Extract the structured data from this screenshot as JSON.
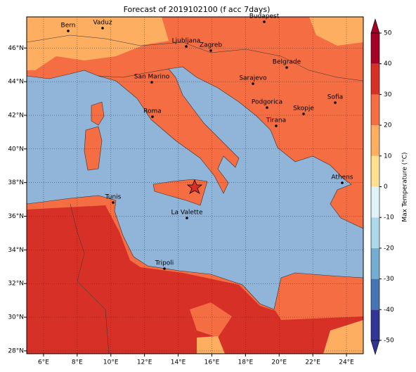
{
  "title": "Forecast of 2019102100 (f acc 7days)",
  "map": {
    "lon_range": [
      5,
      25
    ],
    "lat_range": [
      27.83,
      47.85
    ],
    "lon_ticks": [
      {
        "value": 6,
        "label": "6°E"
      },
      {
        "value": 8,
        "label": "8°E"
      },
      {
        "value": 10,
        "label": "10°E"
      },
      {
        "value": 12,
        "label": "12°E"
      },
      {
        "value": 14,
        "label": "14°E"
      },
      {
        "value": 16,
        "label": "16°E"
      },
      {
        "value": 18,
        "label": "18°E"
      },
      {
        "value": 20,
        "label": "20°E"
      },
      {
        "value": 22,
        "label": "22°E"
      },
      {
        "value": 24,
        "label": "24°E"
      }
    ],
    "lat_ticks": [
      {
        "value": 28,
        "label": "28°N"
      },
      {
        "value": 30,
        "label": "30°N"
      },
      {
        "value": 32,
        "label": "32°N"
      },
      {
        "value": 34,
        "label": "34°N"
      },
      {
        "value": 36,
        "label": "36°N"
      },
      {
        "value": 38,
        "label": "38°N"
      },
      {
        "value": 40,
        "label": "40°N"
      },
      {
        "value": 42,
        "label": "42°N"
      },
      {
        "value": 44,
        "label": "44°N"
      },
      {
        "value": 46,
        "label": "46°N"
      }
    ],
    "cities": [
      "Bern",
      "Vaduz",
      "Budapest",
      "Ljubljana",
      "Zagreb",
      "Belgrade",
      "San Marino",
      "Sarajevo",
      "Sofia",
      "Podgorica",
      "Skopje",
      "Roma",
      "Tirana",
      "Athens",
      "Tunis",
      "La Valette",
      "Tripoli"
    ]
  },
  "colorbar": {
    "label": "Max Temperature (°C)",
    "range": [
      -50,
      50
    ],
    "ticks": [
      -50,
      -40,
      -30,
      -20,
      -10,
      0,
      10,
      20,
      30,
      40,
      50
    ],
    "colors": [
      "#313695",
      "#4575b4",
      "#74add1",
      "#abd9e9",
      "#e0f3f8",
      "#fee090",
      "#fdae61",
      "#f46d43",
      "#d73027",
      "#a50026"
    ]
  }
}
